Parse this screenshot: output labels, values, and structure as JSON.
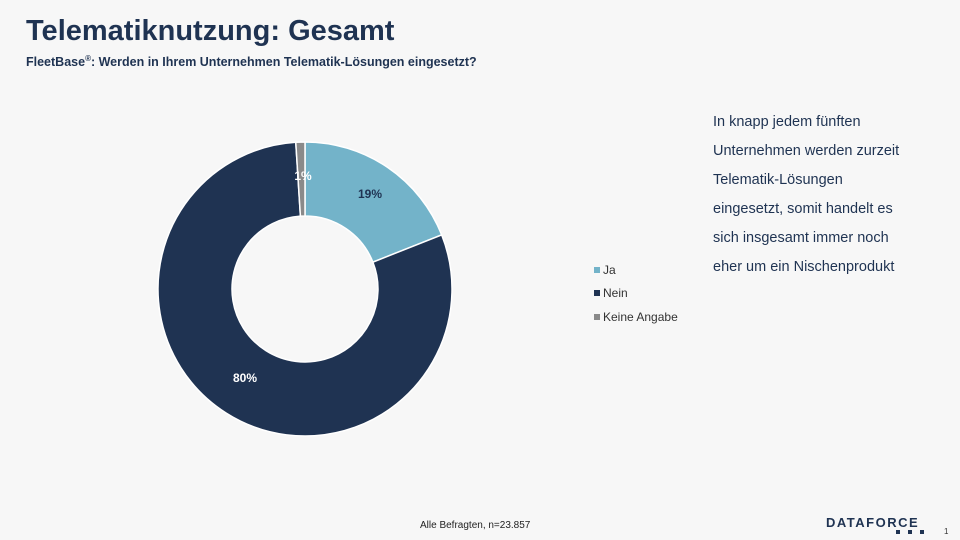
{
  "header": {
    "title": "Telematiknutzung: Gesamt",
    "subtitle_brand": "FleetBase",
    "subtitle_mark": "®",
    "subtitle_question": ": Werden in Ihrem Unternehmen Telematik-Lösungen eingesetzt?"
  },
  "chart_data": {
    "type": "pie",
    "variant": "donut",
    "categories": [
      "Ja",
      "Nein",
      "Keine Angabe"
    ],
    "values": [
      19,
      80,
      1
    ],
    "labels": [
      "19%",
      "80%",
      "1%"
    ],
    "colors": [
      "#73b3c9",
      "#1f3352",
      "#8a8a8a"
    ],
    "legend_position": "right",
    "start": "top, clockwise"
  },
  "legend": [
    {
      "label": "Ja",
      "color": "#73b3c9"
    },
    {
      "label": "Nein",
      "color": "#1f3352"
    },
    {
      "label": "Keine Angabe",
      "color": "#8a8a8a"
    }
  ],
  "commentary": [
    "In knapp jedem fünften",
    "Unternehmen werden zurzeit",
    "Telematik-Lösungen",
    "eingesetzt, somit handelt es",
    "sich insgesamt immer noch",
    "eher um ein Nischenprodukt"
  ],
  "footer": {
    "note": "Alle Befragten, n=23.857",
    "logo": "DATAFORCE",
    "page_number": "1"
  },
  "colors": {
    "accent": "#1f3352",
    "background": "#f7f7f7"
  }
}
